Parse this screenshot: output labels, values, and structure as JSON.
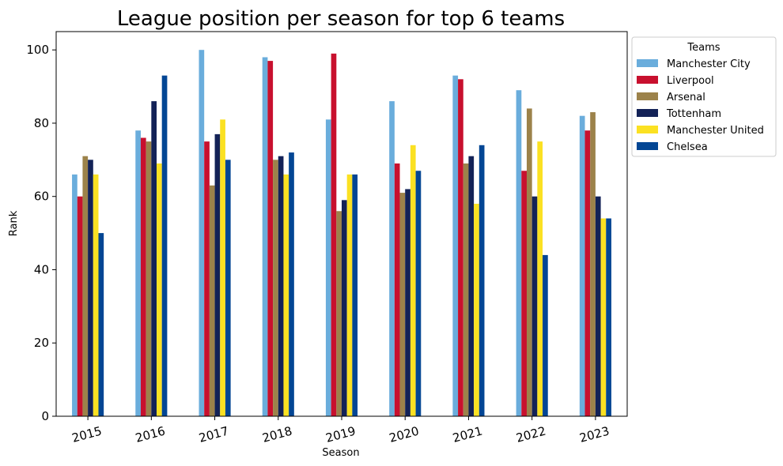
{
  "chart_data": {
    "type": "bar",
    "title": "League position per season for top 6 teams",
    "xlabel": "Season",
    "ylabel": "Rank",
    "ylim": [
      0,
      105
    ],
    "yticks": [
      0,
      20,
      40,
      60,
      80,
      100
    ],
    "grid": false,
    "legend_title": "Teams",
    "legend_position": "outside top-right",
    "categories": [
      "2015",
      "2016",
      "2017",
      "2018",
      "2019",
      "2020",
      "2021",
      "2022",
      "2023"
    ],
    "series": [
      {
        "name": "Manchester City",
        "color": "#6aaddc",
        "values": [
          66,
          78,
          100,
          98,
          81,
          86,
          93,
          89,
          82
        ]
      },
      {
        "name": "Liverpool",
        "color": "#c8102e",
        "values": [
          60,
          76,
          75,
          97,
          99,
          69,
          92,
          67,
          78
        ]
      },
      {
        "name": "Arsenal",
        "color": "#9c824a",
        "values": [
          71,
          75,
          63,
          70,
          56,
          61,
          69,
          84,
          83
        ]
      },
      {
        "name": "Tottenham",
        "color": "#132257",
        "values": [
          70,
          86,
          77,
          71,
          59,
          62,
          71,
          60,
          60
        ]
      },
      {
        "name": "Manchester United",
        "color": "#fbe122",
        "values": [
          66,
          69,
          81,
          66,
          66,
          74,
          58,
          75,
          54
        ]
      },
      {
        "name": "Chelsea",
        "color": "#034694",
        "values": [
          50,
          93,
          70,
          72,
          66,
          67,
          74,
          44,
          54
        ]
      }
    ]
  }
}
